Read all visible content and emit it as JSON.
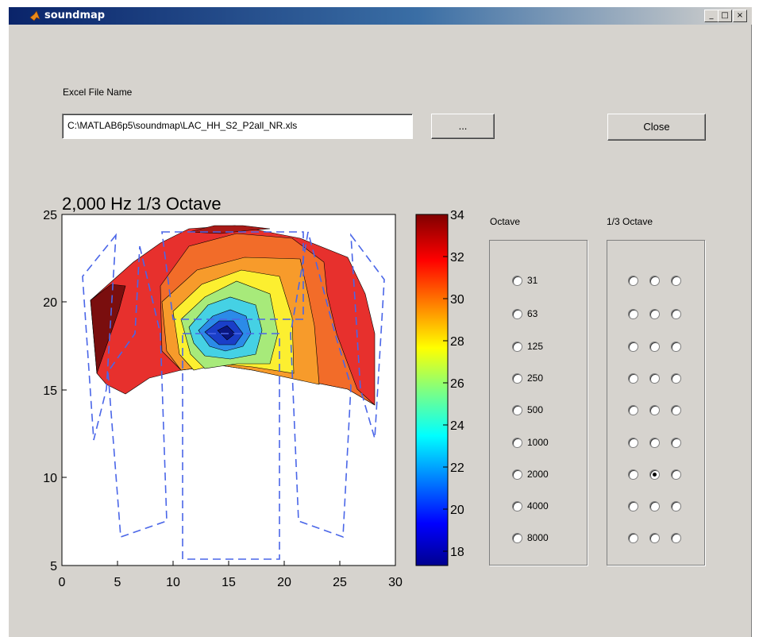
{
  "window": {
    "title": "soundmap",
    "minimize": "_",
    "maximize": "□",
    "close": "×"
  },
  "file": {
    "label": "Excel File Name",
    "value": "C:\\MATLAB6p5\\soundmap\\LAC_HH_S2_P2all_NR.xls",
    "browse_label": "...",
    "close_label": "Close"
  },
  "plot": {
    "title": "2,000 Hz 1/3 Octave",
    "xticks": [
      "0",
      "5",
      "10",
      "15",
      "20",
      "25",
      "30"
    ],
    "yticks": [
      "5",
      "10",
      "15",
      "20",
      "25"
    ],
    "colorbar_ticks": [
      "34",
      "32",
      "30",
      "28",
      "26",
      "24",
      "22",
      "20",
      "18"
    ]
  },
  "octave": {
    "label": "Octave",
    "options": [
      "31",
      "63",
      "125",
      "250",
      "500",
      "1000",
      "2000",
      "4000",
      "8000"
    ]
  },
  "third_octave": {
    "label": "1/3 Octave",
    "rows": 9,
    "selected": {
      "row": 6,
      "col": 1
    }
  },
  "colors": {
    "line_blue": "#4a66e8",
    "window_bg": "#d6d3ce"
  }
}
